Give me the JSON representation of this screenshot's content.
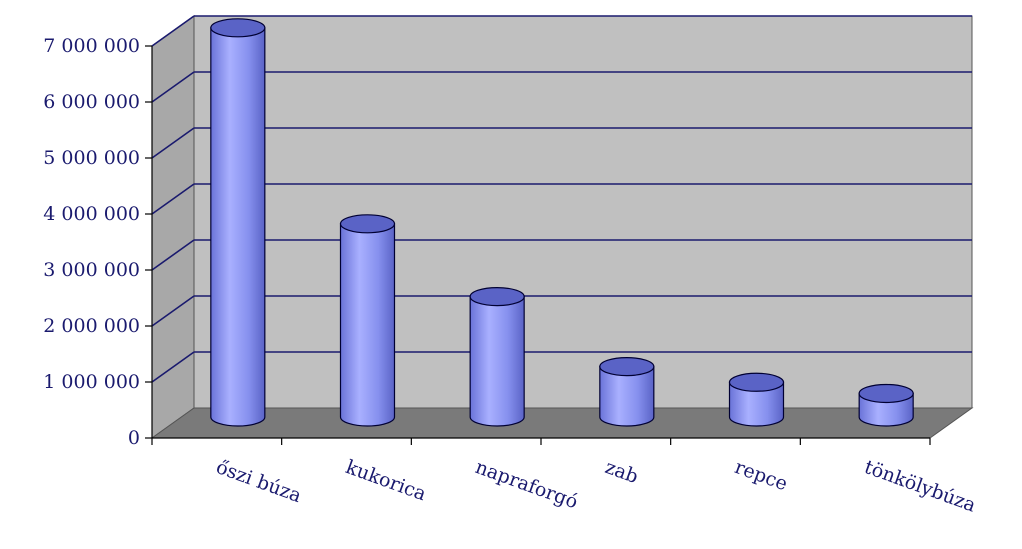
{
  "chart_data": {
    "type": "bar",
    "style": "3d-cylinder",
    "categories": [
      "őszi búza",
      "kukorica",
      "napraforgó",
      "zab",
      "repce",
      "tönkölybúza"
    ],
    "values": [
      6950000,
      3450000,
      2150000,
      900000,
      620000,
      420000
    ],
    "ylim": [
      0,
      7000000
    ],
    "yticks": [
      0,
      1000000,
      2000000,
      3000000,
      4000000,
      5000000,
      6000000,
      7000000
    ],
    "ytick_labels": [
      "0",
      "1 000 000",
      "2 000 000",
      "3 000 000",
      "4 000 000",
      "5 000 000",
      "6 000 000",
      "7 000 000"
    ],
    "title": "",
    "xlabel": "",
    "ylabel": "",
    "grid": true,
    "legend": "none",
    "colors": {
      "bar": "#8e97f0",
      "bar_dark": "#5a63c6",
      "bar_light": "#b8beff",
      "bar_edge": "#000033",
      "wall": "#c0c0c0",
      "side_wall": "#a8a8a8",
      "floor": "#7a7a7a",
      "grid": "#1a1a6e",
      "text": "#1a1a6e"
    }
  }
}
